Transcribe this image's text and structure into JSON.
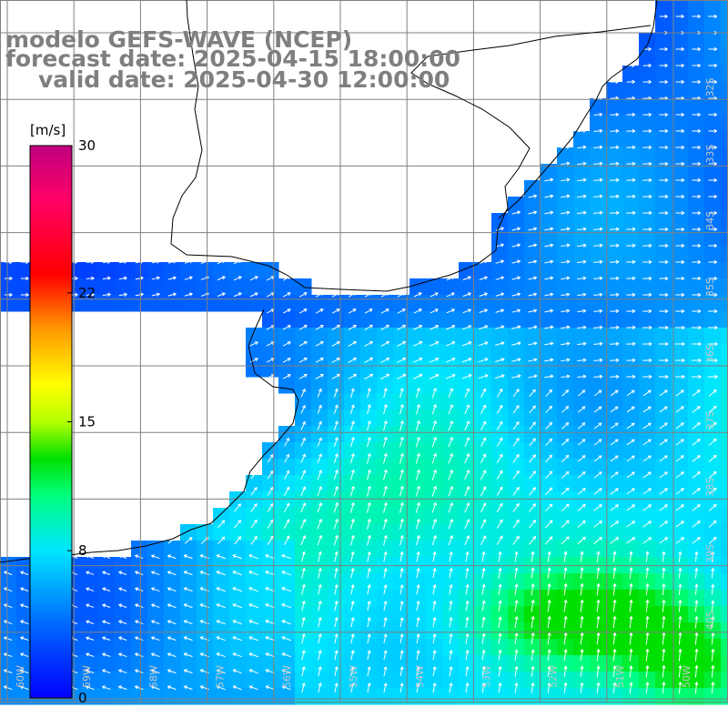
{
  "title": {
    "model": "modelo GEFS-WAVE (NCEP)",
    "forecast": "forecast date: 2025-04-15 18:00:00",
    "valid": "valid date: 2025-04-30 12:00:00"
  },
  "colorbar": {
    "unit": "[m/s]",
    "min": 0,
    "max": 30,
    "ticks": [
      {
        "value": 30,
        "label": "30"
      },
      {
        "value": 22,
        "label": "22"
      },
      {
        "value": 15,
        "label": "15"
      },
      {
        "value": 8,
        "label": "8"
      },
      {
        "value": 0,
        "label": "0"
      }
    ],
    "stops": [
      {
        "value": 0,
        "color": "#0000ff"
      },
      {
        "value": 4,
        "color": "#0068ff"
      },
      {
        "value": 8,
        "color": "#00e6ff"
      },
      {
        "value": 11,
        "color": "#00ff7f"
      },
      {
        "value": 13,
        "color": "#00e000"
      },
      {
        "value": 15,
        "color": "#b4ff00"
      },
      {
        "value": 17,
        "color": "#ffff00"
      },
      {
        "value": 20,
        "color": "#ff9a00"
      },
      {
        "value": 23,
        "color": "#ff0000"
      },
      {
        "value": 27,
        "color": "#ff0066"
      },
      {
        "value": 30,
        "color": "#c0007f"
      }
    ]
  },
  "lon_labels": [
    "60W",
    "59W",
    "58W",
    "57W",
    "56W",
    "55W",
    "54W",
    "53W",
    "52W",
    "51W",
    "50W"
  ],
  "lat_labels": [
    "32S",
    "33S",
    "34S",
    "35S",
    "36S",
    "37S",
    "38S",
    "39S",
    "40S"
  ],
  "colors": {
    "land": "#ffffff",
    "coastline": "#000000",
    "grid": "#808080",
    "arrows": "#ffffff",
    "text": "#7f7f7f"
  }
}
